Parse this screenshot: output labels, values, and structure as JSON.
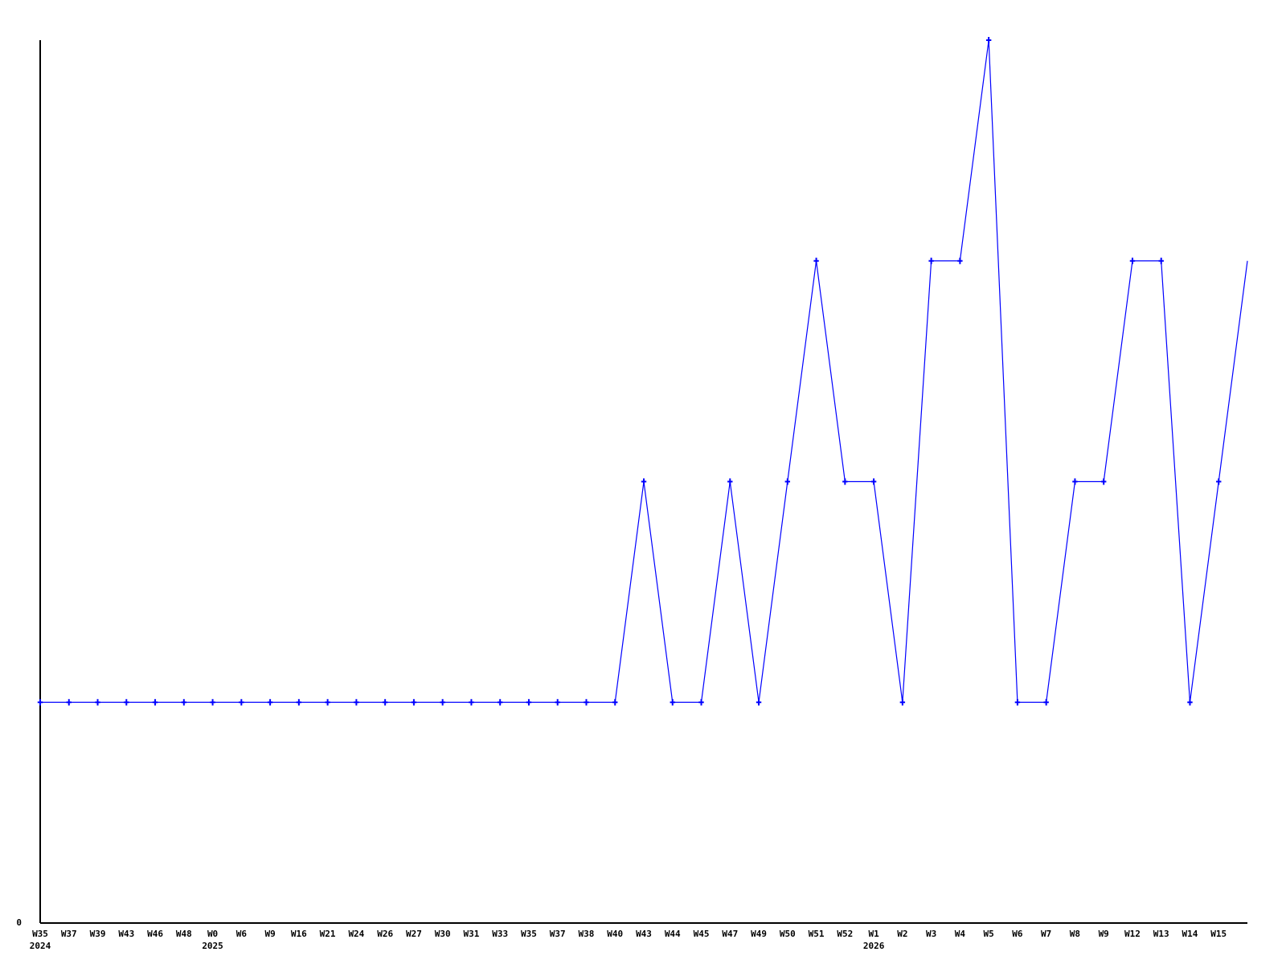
{
  "chart_data": {
    "type": "line",
    "title": "",
    "xlabel": "",
    "ylabel": "",
    "legend": "none",
    "grid": false,
    "background_color": "#ffffff",
    "axis_color": "#000000",
    "line_color": "#0000ff",
    "marker": "plus",
    "ylim": [
      0,
      4.0
    ],
    "y_tick_labels": [
      "0"
    ],
    "x_labels": [
      "W35",
      "W37",
      "W39",
      "W43",
      "W46",
      "W48",
      "W0",
      "W6",
      "W9",
      "W16",
      "W21",
      "W24",
      "W26",
      "W27",
      "W30",
      "W31",
      "W33",
      "W35",
      "W37",
      "W38",
      "W40",
      "W43",
      "W44",
      "W45",
      "W47",
      "W49",
      "W50",
      "W51",
      "W52",
      "W1",
      "W2",
      "W3",
      "W4",
      "W5",
      "W6",
      "W7",
      "W8",
      "W9",
      "W12",
      "W13",
      "W14",
      "W15",
      ""
    ],
    "values": [
      1,
      1,
      1,
      1,
      1,
      1,
      1,
      1,
      1,
      1,
      1,
      1,
      1,
      1,
      1,
      1,
      1,
      1,
      1,
      1,
      1,
      2,
      1,
      1,
      2,
      1,
      2,
      3,
      2,
      2,
      1,
      3,
      3,
      4,
      1,
      1,
      2,
      2,
      3,
      3,
      1,
      2,
      3
    ],
    "year_labels": [
      {
        "index": 0,
        "text": "2024"
      },
      {
        "index": 6,
        "text": "2025"
      },
      {
        "index": 29,
        "text": "2026"
      }
    ]
  }
}
